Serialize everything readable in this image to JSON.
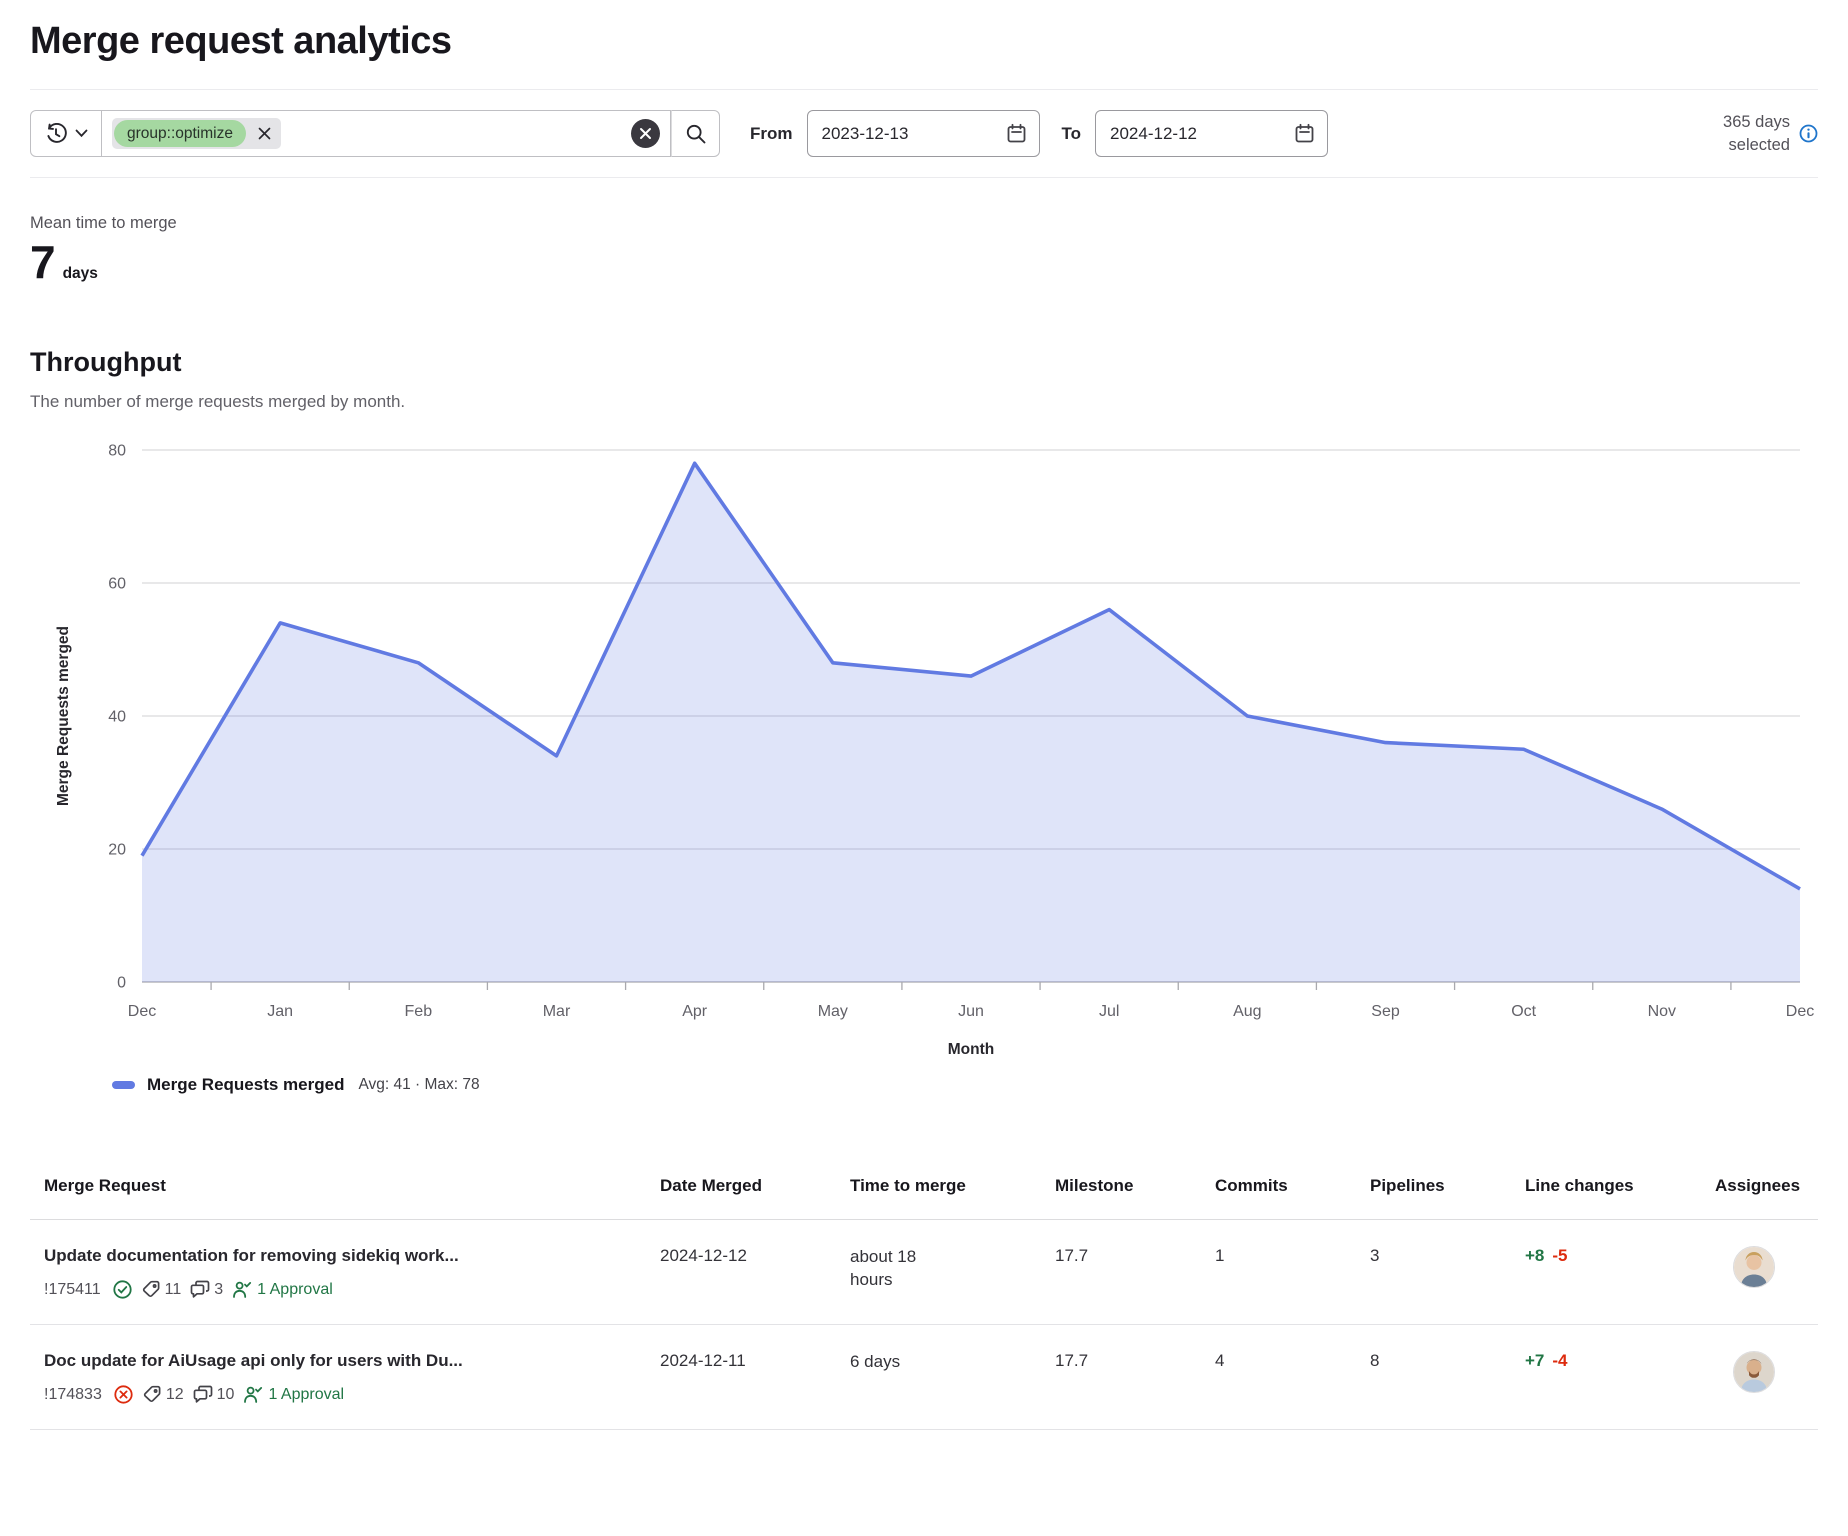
{
  "page": {
    "title": "Merge request analytics"
  },
  "filter_bar": {
    "token_label": "group::optimize",
    "from_label": "From",
    "from_value": "2023-12-13",
    "to_label": "To",
    "to_value": "2024-12-12",
    "days_selected": "365 days selected"
  },
  "stats": {
    "mean_time_label": "Mean time to merge",
    "mean_time_value": "7",
    "mean_time_unit": "days"
  },
  "throughput": {
    "heading": "Throughput",
    "description": "The number of merge requests merged by month."
  },
  "chart_data": {
    "type": "area",
    "x": [
      "Dec",
      "Jan",
      "Feb",
      "Mar",
      "Apr",
      "May",
      "Jun",
      "Jul",
      "Aug",
      "Sep",
      "Oct",
      "Nov",
      "Dec"
    ],
    "series": [
      {
        "name": "Merge Requests merged",
        "values": [
          19,
          54,
          48,
          34,
          78,
          48,
          46,
          56,
          40,
          36,
          35,
          26,
          14
        ]
      }
    ],
    "title": "",
    "xlabel": "Month",
    "ylabel": "Merge Requests merged",
    "ylim": [
      0,
      80
    ],
    "yticks": [
      0,
      20,
      40,
      60,
      80
    ],
    "grid": true,
    "legend_position": "bottom-left",
    "legend_label": "Merge Requests merged",
    "legend_stats": "Avg: 41 · Max: 78",
    "line_color": "#617ae2",
    "fill_color": "rgba(97,122,226,0.2)"
  },
  "colors": {
    "accent_blue": "#617ae2",
    "success_green": "#217645",
    "danger_red": "#dd2b0e",
    "token_green": "#a5d8a1",
    "info_blue": "#1f75cb"
  },
  "table": {
    "columns": [
      "Merge Request",
      "Date Merged",
      "Time to merge",
      "Milestone",
      "Commits",
      "Pipelines",
      "Line changes",
      "Assignees"
    ],
    "rows": [
      {
        "title": "Update documentation for removing sidekiq work...",
        "mr_id": "!175411",
        "pipeline_status": "passed",
        "labels_count": "11",
        "comments_count": "3",
        "approvals": "1 Approval",
        "date_merged": "2024-12-12",
        "time_to_merge": "about 18 hours",
        "milestone": "17.7",
        "commits": "1",
        "pipelines": "3",
        "additions": "+8",
        "deletions": "-5"
      },
      {
        "title": "Doc update for AiUsage api only for users with Du...",
        "mr_id": "!174833",
        "pipeline_status": "failed",
        "labels_count": "12",
        "comments_count": "10",
        "approvals": "1 Approval",
        "date_merged": "2024-12-11",
        "time_to_merge": "6 days",
        "milestone": "17.7",
        "commits": "4",
        "pipelines": "8",
        "additions": "+7",
        "deletions": "-4"
      }
    ]
  }
}
